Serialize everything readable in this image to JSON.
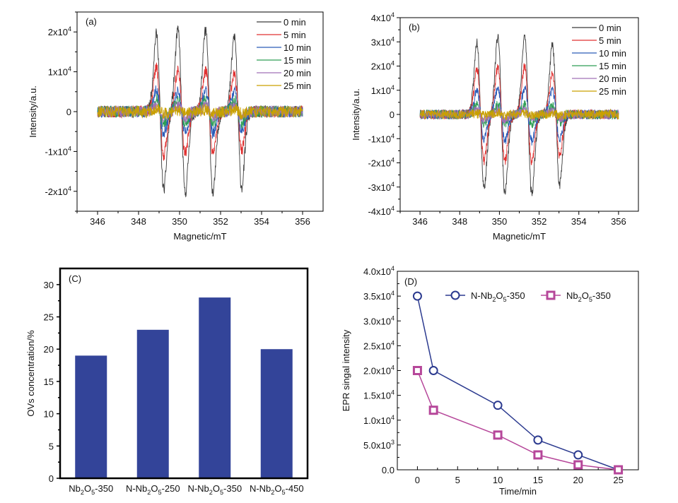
{
  "chart_data": [
    {
      "id": "a",
      "type": "line",
      "panel_label": "(a)",
      "title": "",
      "xlabel": "Magnetic/mT",
      "ylabel": "Intensity/a.u.",
      "xlim": [
        345,
        357
      ],
      "ylim": [
        -25000,
        25000
      ],
      "xticks": [
        346,
        348,
        350,
        352,
        354,
        356
      ],
      "xtick_labels": [
        "346",
        "348",
        "350",
        "352",
        "354",
        "356"
      ],
      "yticks": [
        -20000,
        -10000,
        0,
        10000,
        20000
      ],
      "ytick_labels": [
        {
          "m": "-2x10",
          "e": "4"
        },
        {
          "m": "-1x10",
          "e": "4"
        },
        {
          "m": "0",
          "e": ""
        },
        {
          "m": "1x10",
          "e": "4"
        },
        {
          "m": "2x10",
          "e": "4"
        }
      ],
      "legend_position": "top-right",
      "x_range": [
        346,
        356
      ],
      "line_centers": [
        349.05,
        350.1,
        351.45,
        352.85
      ],
      "noise_amplitude": 1500,
      "series": [
        {
          "name": "0 min",
          "color": "#3a3a3a",
          "peak_amplitudes": [
            19500,
            20500,
            20500,
            19000
          ]
        },
        {
          "name": "5 min",
          "color": "#e03030",
          "peak_amplitudes": [
            11000,
            10500,
            10500,
            9500
          ]
        },
        {
          "name": "10 min",
          "color": "#2a5cb8",
          "peak_amplitudes": [
            5500,
            5000,
            5500,
            5000
          ]
        },
        {
          "name": "15 min",
          "color": "#2e9e55",
          "peak_amplitudes": [
            3000,
            3000,
            3000,
            2800
          ]
        },
        {
          "name": "20 min",
          "color": "#a070b8",
          "peak_amplitudes": [
            1500,
            1500,
            1500,
            1500
          ]
        },
        {
          "name": "25 min",
          "color": "#c9a000",
          "peak_amplitudes": [
            500,
            500,
            500,
            500
          ]
        }
      ]
    },
    {
      "id": "b",
      "type": "line",
      "panel_label": "(b)",
      "title": "",
      "xlabel": "Magnetic/mT",
      "ylabel": "Intensity/a.u.",
      "xlim": [
        345,
        357
      ],
      "ylim": [
        -40000,
        40000
      ],
      "xticks": [
        346,
        348,
        350,
        352,
        354,
        356
      ],
      "xtick_labels": [
        "346",
        "348",
        "350",
        "352",
        "354",
        "356"
      ],
      "yticks": [
        -40000,
        -30000,
        -20000,
        -10000,
        0,
        10000,
        20000,
        30000,
        40000
      ],
      "ytick_labels": [
        {
          "m": "-4x10",
          "e": "4"
        },
        {
          "m": "-3x10",
          "e": "4"
        },
        {
          "m": "-2x10",
          "e": "4"
        },
        {
          "m": "-1x10",
          "e": "4"
        },
        {
          "m": "0",
          "e": ""
        },
        {
          "m": "1x10",
          "e": "4"
        },
        {
          "m": "2x10",
          "e": "4"
        },
        {
          "m": "3x10",
          "e": "4"
        },
        {
          "m": "4x10",
          "e": "4"
        }
      ],
      "legend_position": "top-right",
      "x_range": [
        346,
        356
      ],
      "line_centers": [
        349.05,
        350.1,
        351.45,
        352.85
      ],
      "noise_amplitude": 2000,
      "series": [
        {
          "name": "0 min",
          "color": "#3a3a3a",
          "peak_amplitudes": [
            30000,
            32500,
            32500,
            29000
          ]
        },
        {
          "name": "5 min",
          "color": "#e03030",
          "peak_amplitudes": [
            19000,
            19500,
            20000,
            17000
          ]
        },
        {
          "name": "10 min",
          "color": "#2a5cb8",
          "peak_amplitudes": [
            10000,
            11000,
            11000,
            10000
          ]
        },
        {
          "name": "15 min",
          "color": "#2e9e55",
          "peak_amplitudes": [
            4000,
            4000,
            4000,
            3500
          ]
        },
        {
          "name": "20 min",
          "color": "#a070b8",
          "peak_amplitudes": [
            2000,
            2000,
            2000,
            2000
          ]
        },
        {
          "name": "25 min",
          "color": "#c9a000",
          "peak_amplitudes": [
            500,
            500,
            500,
            500
          ]
        }
      ]
    },
    {
      "id": "c",
      "type": "bar",
      "panel_label": "(C)",
      "title": "",
      "xlabel": "",
      "ylabel": "OVs concentration/%",
      "ylim": [
        0,
        32.5
      ],
      "yticks": [
        0,
        5,
        10,
        15,
        20,
        25,
        30
      ],
      "ytick_labels": [
        "0",
        "5",
        "10",
        "15",
        "20",
        "25",
        "30"
      ],
      "bar_color": "#334499",
      "categories": [
        {
          "parts": [
            [
              "Nb",
              ""
            ],
            [
              "2",
              "sub"
            ],
            [
              "O",
              ""
            ],
            [
              "5",
              "sub"
            ],
            [
              "-350",
              ""
            ]
          ]
        },
        {
          "parts": [
            [
              "N-Nb",
              ""
            ],
            [
              "2",
              "sub"
            ],
            [
              "O",
              ""
            ],
            [
              "5",
              "sub"
            ],
            [
              "-250",
              ""
            ]
          ]
        },
        {
          "parts": [
            [
              "N-Nb",
              ""
            ],
            [
              "2",
              "sub"
            ],
            [
              "O",
              ""
            ],
            [
              "5",
              "sub"
            ],
            [
              "-350",
              ""
            ]
          ]
        },
        {
          "parts": [
            [
              "N-Nb",
              ""
            ],
            [
              "2",
              "sub"
            ],
            [
              "O",
              ""
            ],
            [
              "5",
              "sub"
            ],
            [
              "-450",
              ""
            ]
          ]
        }
      ],
      "category_names": [
        "Nb2O5-350",
        "N-Nb2O5-250",
        "N-Nb2O5-350",
        "N-Nb2O5-450"
      ],
      "values": [
        19,
        23,
        28,
        20
      ]
    },
    {
      "id": "d",
      "type": "line",
      "panel_label": "(D)",
      "title": "",
      "xlabel": "Time/min",
      "ylabel": "EPR singal intensity",
      "xlim": [
        -2.5,
        27.5
      ],
      "ylim": [
        0,
        40000
      ],
      "xticks": [
        0,
        5,
        10,
        15,
        20,
        25
      ],
      "xtick_labels": [
        "0",
        "5",
        "10",
        "15",
        "20",
        "25"
      ],
      "yticks": [
        0,
        5000,
        10000,
        15000,
        20000,
        25000,
        30000,
        35000,
        40000
      ],
      "ytick_labels": [
        {
          "m": "0.0",
          "e": ""
        },
        {
          "m": "5.0x10",
          "e": "3"
        },
        {
          "m": "1.0x10",
          "e": "4"
        },
        {
          "m": "1.5x10",
          "e": "4"
        },
        {
          "m": "2.0x10",
          "e": "4"
        },
        {
          "m": "2.5x10",
          "e": "4"
        },
        {
          "m": "3.0x10",
          "e": "4"
        },
        {
          "m": "3.5x10",
          "e": "4"
        },
        {
          "m": "4.0x10",
          "e": "4"
        }
      ],
      "legend_position": "top",
      "series": [
        {
          "name": "N-Nb2O5-350",
          "legend_parts": [
            [
              "N-Nb",
              ""
            ],
            [
              "2",
              "sub"
            ],
            [
              "O",
              ""
            ],
            [
              "5",
              "sub"
            ],
            [
              "-350",
              ""
            ]
          ],
          "marker": "circle",
          "color": "#2b3a8f",
          "x": [
            0,
            2,
            10,
            15,
            20,
            25
          ],
          "y": [
            35000,
            20000,
            13000,
            6000,
            3000,
            0
          ]
        },
        {
          "name": "Nb2O5-350",
          "legend_parts": [
            [
              "Nb",
              ""
            ],
            [
              "2",
              "sub"
            ],
            [
              "O",
              ""
            ],
            [
              "5",
              "sub"
            ],
            [
              "-350",
              ""
            ]
          ],
          "marker": "square",
          "color": "#b6479a",
          "x": [
            0,
            2,
            10,
            15,
            20,
            25
          ],
          "y": [
            20000,
            12000,
            7000,
            3000,
            1000,
            0
          ]
        }
      ]
    }
  ]
}
